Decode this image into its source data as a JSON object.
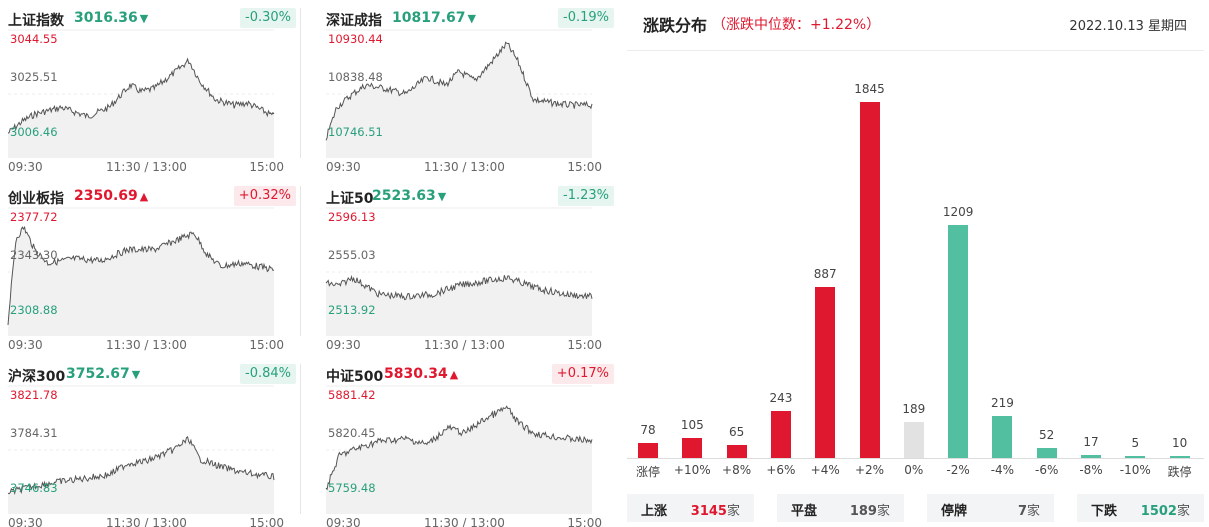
{
  "indices": [
    {
      "name": "上证指数",
      "price": "3016.36",
      "direction": "down",
      "change": "-0.30%",
      "high": "3044.55",
      "mid": "3025.51",
      "low": "3006.46",
      "x_labels": [
        "09:30",
        "11:30 / 13:00",
        "15:00"
      ]
    },
    {
      "name": "深证成指",
      "price": "10817.67",
      "direction": "down",
      "change": "-0.19%",
      "high": "10930.44",
      "mid": "10838.48",
      "low": "10746.51",
      "x_labels": [
        "09:30",
        "11:30 / 13:00",
        "15:00"
      ]
    },
    {
      "name": "创业板指",
      "price": "2350.69",
      "direction": "up",
      "change": "+0.32%",
      "high": "2377.72",
      "mid": "2343.30",
      "low": "2308.88",
      "x_labels": [
        "09:30",
        "11:30 / 13:00",
        "15:00"
      ]
    },
    {
      "name": "上证50",
      "price": "2523.63",
      "direction": "down",
      "change": "-1.23%",
      "high": "2596.13",
      "mid": "2555.03",
      "low": "2513.92",
      "x_labels": [
        "09:30",
        "11:30 / 13:00",
        "15:00"
      ]
    },
    {
      "name": "沪深300",
      "price": "3752.67",
      "direction": "down",
      "change": "-0.84%",
      "high": "3821.78",
      "mid": "3784.31",
      "low": "3746.83",
      "x_labels": [
        "09:30",
        "11:30 / 13:00",
        "15:00"
      ]
    },
    {
      "name": "中证500",
      "price": "5830.34",
      "direction": "up",
      "change": "+0.17%",
      "high": "5881.42",
      "mid": "5820.45",
      "low": "5759.48",
      "x_labels": [
        "09:30",
        "11:30 / 13:00",
        "15:00"
      ]
    }
  ],
  "distribution": {
    "title": "涨跌分布",
    "subtitle": "（涨跌中位数：+1.22%）",
    "date": "2022.10.13 星期四"
  },
  "chart_data": {
    "type": "bar",
    "title": "涨跌分布",
    "categories": [
      "涨停",
      "+10%",
      "+8%",
      "+6%",
      "+4%",
      "+2%",
      "0%",
      "-2%",
      "-4%",
      "-6%",
      "-8%",
      "-10%",
      "跌停"
    ],
    "values": [
      78,
      105,
      65,
      243,
      887,
      1845,
      189,
      1209,
      219,
      52,
      17,
      5,
      10
    ],
    "bar_colors": [
      "#e0182f",
      "#e0182f",
      "#e0182f",
      "#e0182f",
      "#e0182f",
      "#e0182f",
      "#e2e2e2",
      "#52c0a0",
      "#52c0a0",
      "#52c0a0",
      "#52c0a0",
      "#52c0a0",
      "#52c0a0"
    ],
    "ylim": [
      0,
      1845
    ]
  },
  "summary": [
    {
      "label": "上涨",
      "value": "3145",
      "unit": "家",
      "color": "#e0182f"
    },
    {
      "label": "平盘",
      "value": "189",
      "unit": "家",
      "color": "#555555"
    },
    {
      "label": "停牌",
      "value": "7",
      "unit": "家",
      "color": "#555555"
    },
    {
      "label": "下跌",
      "value": "1502",
      "unit": "家",
      "color": "#28a07c"
    }
  ],
  "colors": {
    "up": "#e0182f",
    "down": "#28a07c",
    "flat": "#e2e2e2",
    "down_bar": "#52c0a0"
  }
}
